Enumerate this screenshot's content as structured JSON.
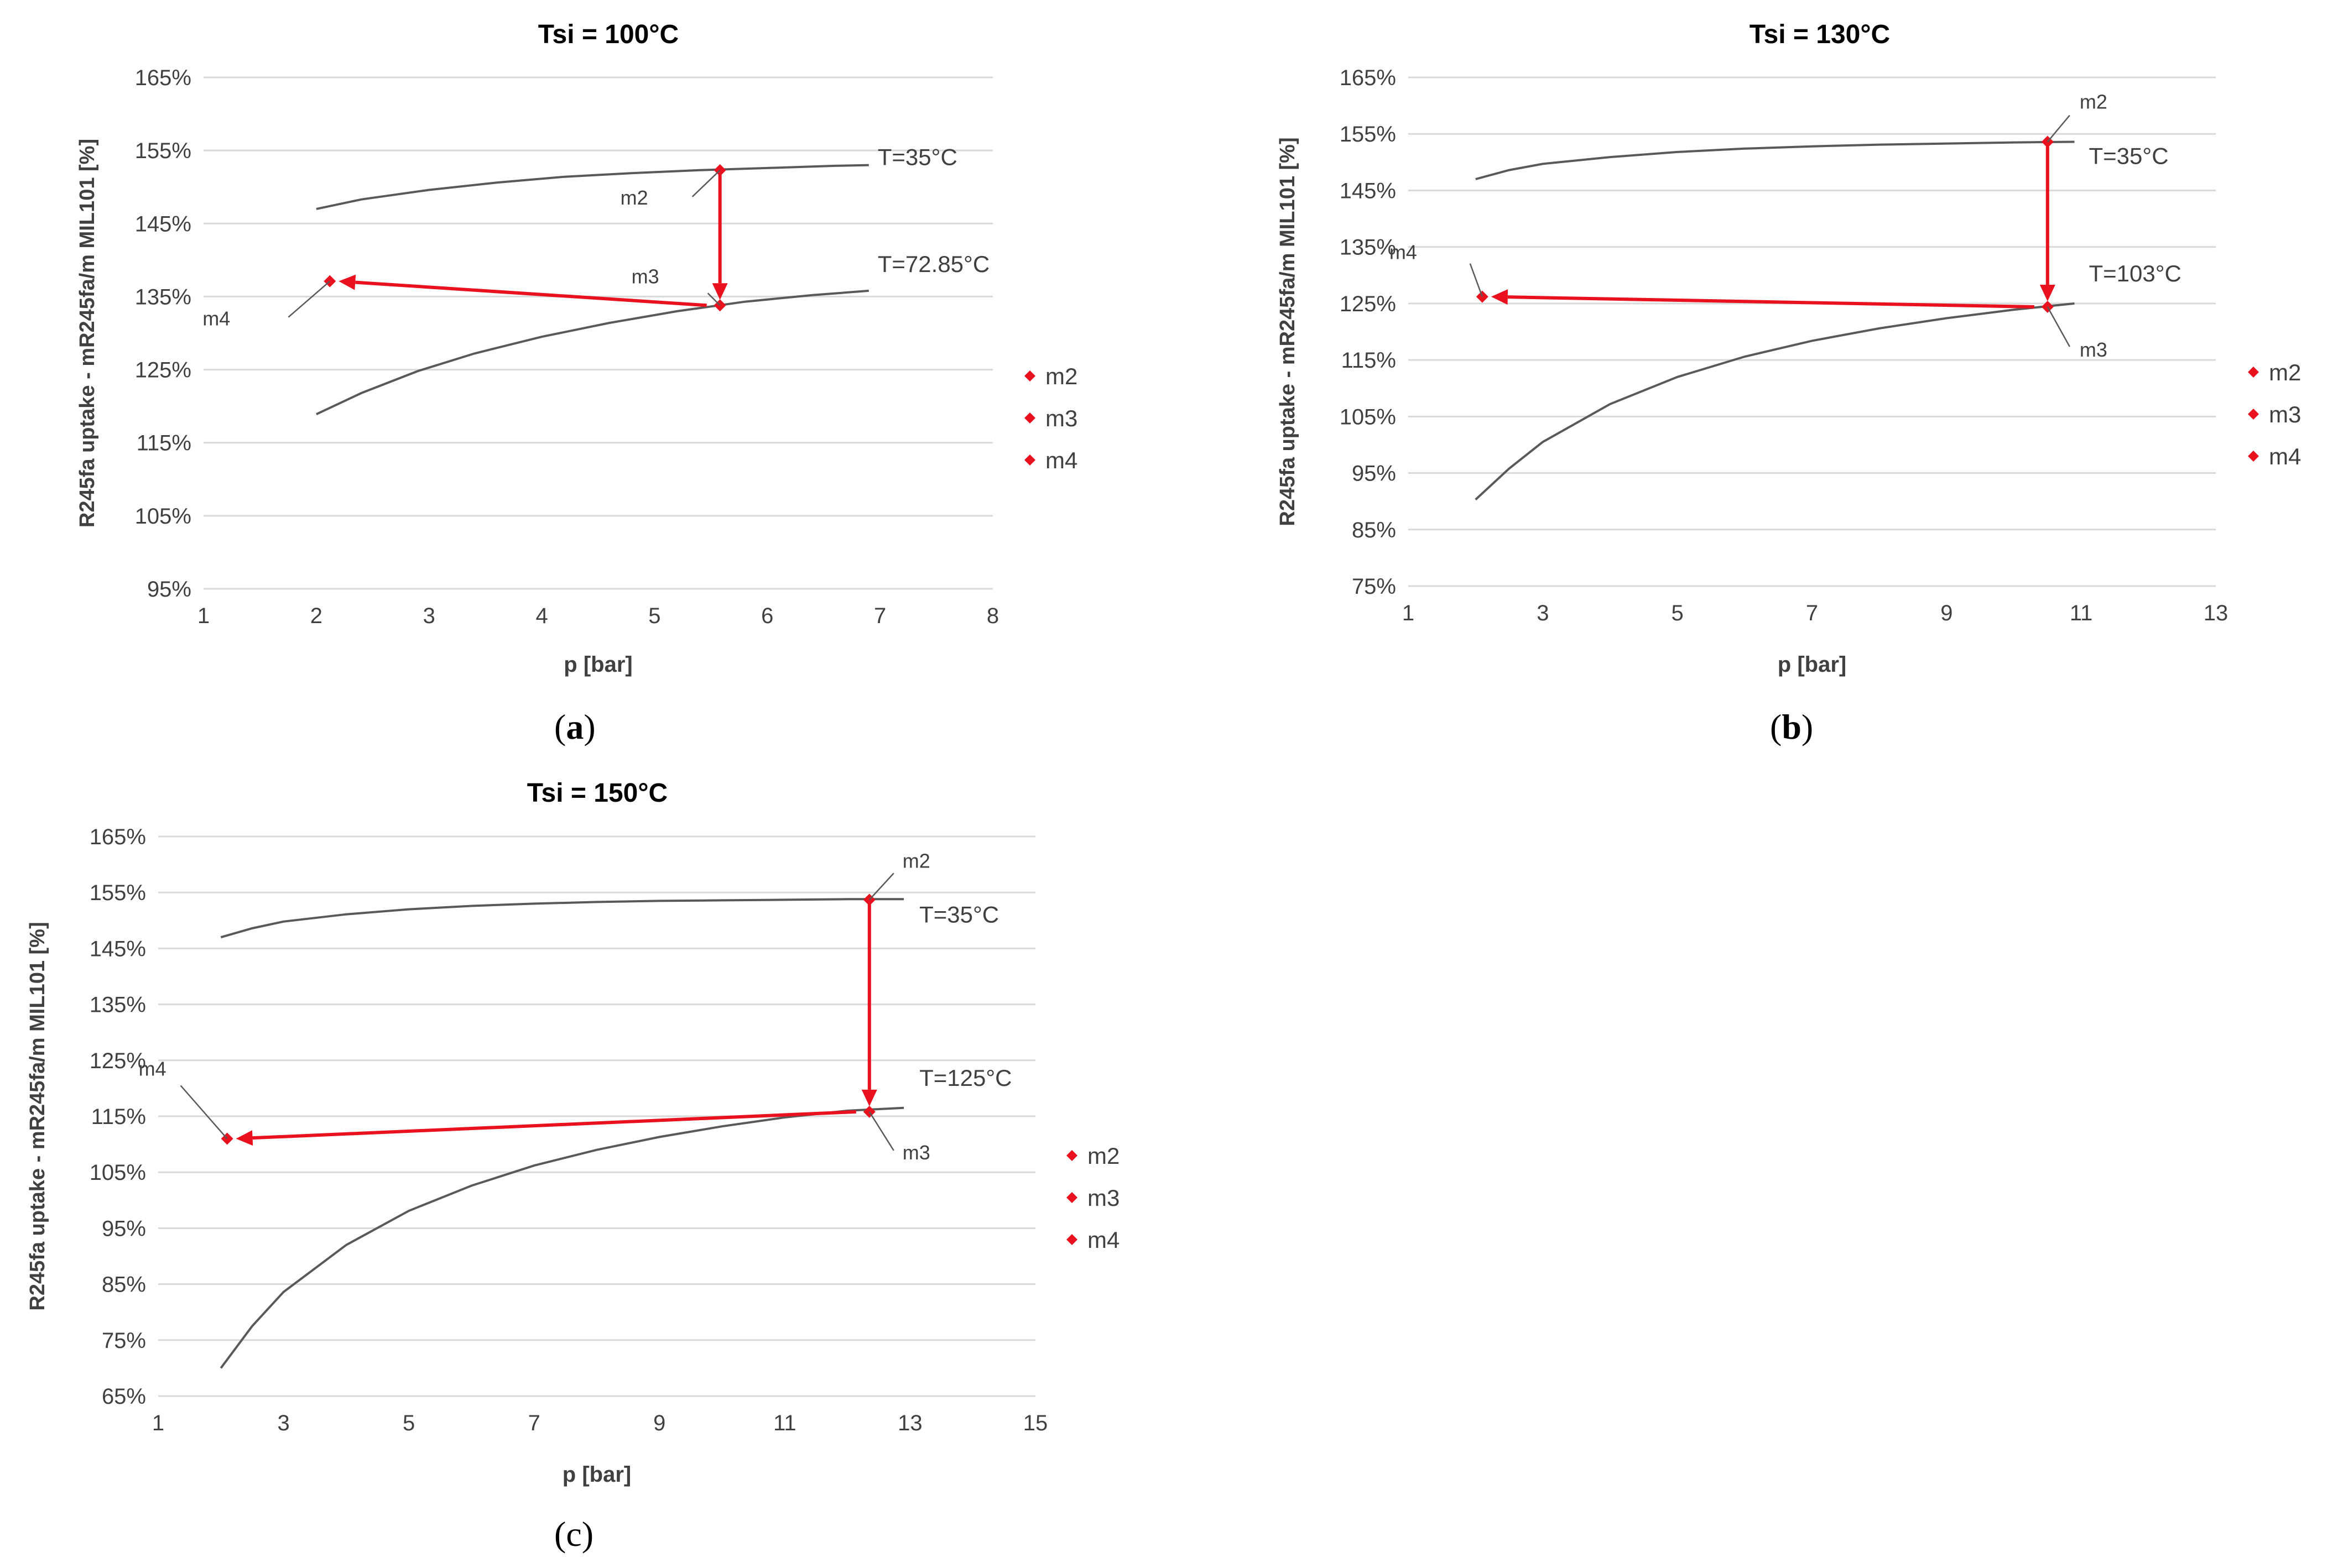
{
  "figure": {
    "panels": [
      {
        "caption_open": "(",
        "caption_letter": "a",
        "caption_close": ")",
        "caption_bold": true
      },
      {
        "caption_open": "(",
        "caption_letter": "b",
        "caption_close": ")",
        "caption_bold": true
      },
      {
        "caption_open": "(",
        "caption_letter": "c",
        "caption_close": ")",
        "caption_bold": false
      }
    ]
  },
  "colors": {
    "isotherm": "#595959",
    "marker": "#e8111d",
    "arrow": "#e8111d",
    "grid": "#d9d9d9",
    "text": "#000000",
    "label": "#404040"
  },
  "chart_data": [
    {
      "type": "line",
      "title": "Tsi = 100°C",
      "xlabel": "p [bar]",
      "ylabel": "R245fa uptake -  mR245fa/m MIL101   [%]",
      "xlim": [
        1,
        8
      ],
      "ylim": [
        95,
        165
      ],
      "xticks": [
        1,
        2,
        3,
        4,
        5,
        6,
        7,
        8
      ],
      "yticks": [
        95,
        105,
        115,
        125,
        135,
        145,
        155,
        165
      ],
      "ytick_labels": [
        "95%",
        "105%",
        "115%",
        "125%",
        "135%",
        "145%",
        "155%",
        "165%"
      ],
      "grid": true,
      "legend_position": "right",
      "series": [
        {
          "name": "T=35°C",
          "kind": "isotherm",
          "x": [
            2.0,
            2.4,
            3.0,
            3.6,
            4.2,
            4.8,
            5.4,
            6.0,
            6.6,
            6.9
          ],
          "y": [
            147.0,
            148.3,
            149.6,
            150.6,
            151.4,
            151.9,
            152.3,
            152.6,
            152.9,
            153.0
          ]
        },
        {
          "name": "T=72.85°C",
          "kind": "isotherm",
          "x": [
            2.0,
            2.4,
            2.9,
            3.4,
            4.0,
            4.6,
            5.2,
            5.8,
            6.4,
            6.9
          ],
          "y": [
            118.9,
            121.8,
            124.8,
            127.2,
            129.5,
            131.4,
            133.0,
            134.3,
            135.2,
            135.8
          ]
        }
      ],
      "points": [
        {
          "name": "m2",
          "x": 5.58,
          "y": 152.3
        },
        {
          "name": "m3",
          "x": 5.58,
          "y": 133.8
        },
        {
          "name": "m4",
          "x": 2.12,
          "y": 137.1
        }
      ],
      "legend": [
        "m2",
        "m3",
        "m4"
      ]
    },
    {
      "type": "line",
      "title": "Tsi = 130°C",
      "xlabel": "p [bar]",
      "ylabel": "R245fa uptake -  mR245fa/m MIL101   [%]",
      "xlim": [
        1,
        13
      ],
      "ylim": [
        75,
        165
      ],
      "xticks": [
        1,
        3,
        5,
        7,
        9,
        11,
        13
      ],
      "yticks": [
        75,
        85,
        95,
        105,
        115,
        125,
        135,
        145,
        155,
        165
      ],
      "ytick_labels": [
        "75%",
        "85%",
        "95%",
        "105%",
        "115%",
        "125%",
        "135%",
        "145%",
        "155%",
        "165%"
      ],
      "grid": true,
      "legend_position": "right",
      "series": [
        {
          "name": "T=35°C",
          "kind": "isotherm",
          "x": [
            2.0,
            2.5,
            3.0,
            4.0,
            5.0,
            6.0,
            7.0,
            8.0,
            9.0,
            10.0,
            10.9
          ],
          "y": [
            147.0,
            148.6,
            149.7,
            150.9,
            151.8,
            152.4,
            152.8,
            153.1,
            153.3,
            153.5,
            153.6
          ]
        },
        {
          "name": "T=103°C",
          "kind": "isotherm",
          "x": [
            2.0,
            2.5,
            3.0,
            4.0,
            5.0,
            6.0,
            7.0,
            8.0,
            9.0,
            10.0,
            10.9
          ],
          "y": [
            90.3,
            95.8,
            100.5,
            107.2,
            112.0,
            115.6,
            118.4,
            120.6,
            122.4,
            123.9,
            125.0
          ]
        }
      ],
      "points": [
        {
          "name": "m2",
          "x": 10.5,
          "y": 153.6
        },
        {
          "name": "m3",
          "x": 10.5,
          "y": 124.4
        },
        {
          "name": "m4",
          "x": 2.1,
          "y": 126.2
        }
      ],
      "legend": [
        "m2",
        "m3",
        "m4"
      ]
    },
    {
      "type": "line",
      "title": "Tsi = 150°C",
      "xlabel": "p [bar]",
      "ylabel": "R245fa uptake -  mR245fa/m MIL101   [%]",
      "xlim": [
        1,
        15
      ],
      "ylim": [
        65,
        165
      ],
      "xticks": [
        1,
        3,
        5,
        7,
        9,
        11,
        13,
        15
      ],
      "yticks": [
        65,
        75,
        85,
        95,
        105,
        115,
        125,
        135,
        145,
        155,
        165
      ],
      "ytick_labels": [
        "65%",
        "75%",
        "85%",
        "95%",
        "105%",
        "115%",
        "125%",
        "135%",
        "145%",
        "155%",
        "165%"
      ],
      "grid": true,
      "legend_position": "right",
      "series": [
        {
          "name": "T=35°C",
          "kind": "isotherm",
          "x": [
            2.0,
            2.5,
            3.0,
            4.0,
            5.0,
            6.0,
            7.0,
            8.0,
            9.0,
            10.0,
            11.0,
            12.0,
            12.9
          ],
          "y": [
            147.0,
            148.6,
            149.8,
            151.1,
            152.0,
            152.6,
            153.0,
            153.3,
            153.5,
            153.6,
            153.7,
            153.8,
            153.8
          ]
        },
        {
          "name": "T=125°C",
          "kind": "isotherm",
          "x": [
            2.0,
            2.5,
            3.0,
            4.0,
            5.0,
            6.0,
            7.0,
            8.0,
            9.0,
            10.0,
            11.0,
            12.0,
            12.9
          ],
          "y": [
            70.0,
            77.5,
            83.6,
            92.0,
            98.1,
            102.6,
            106.2,
            109.0,
            111.3,
            113.2,
            114.8,
            116.0,
            116.5
          ]
        }
      ],
      "points": [
        {
          "name": "m2",
          "x": 12.35,
          "y": 153.7
        },
        {
          "name": "m3",
          "x": 12.35,
          "y": 115.8
        },
        {
          "name": "m4",
          "x": 2.1,
          "y": 111.0
        }
      ],
      "legend": [
        "m2",
        "m3",
        "m4"
      ]
    }
  ]
}
